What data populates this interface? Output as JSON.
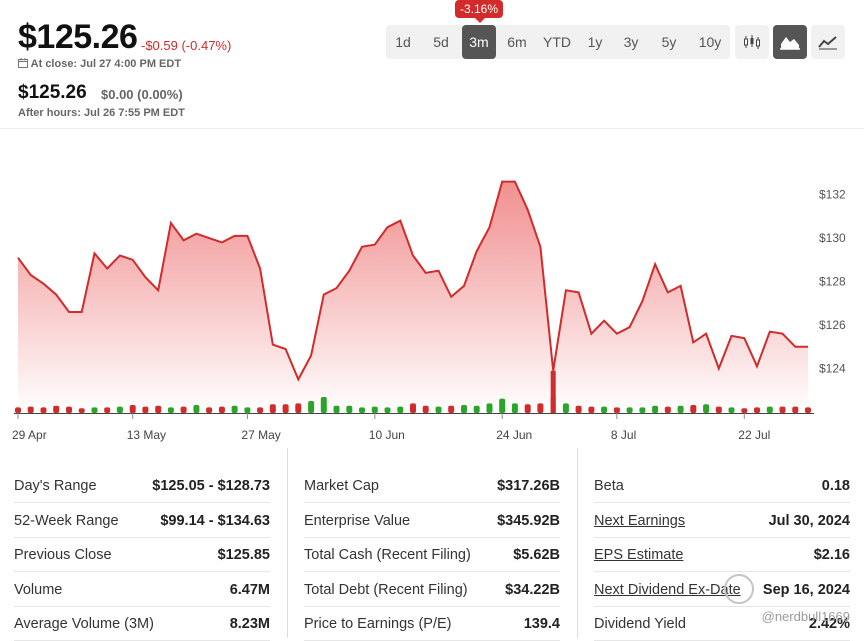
{
  "quote": {
    "price": "$125.26",
    "change": "-$0.59 (-0.47%)",
    "close_label": "At close: Jul 27 4:00 PM EDT",
    "after_price": "$125.26",
    "after_change": "$0.00 (0.00%)",
    "after_label": "After hours: Jul 26 7:55 PM EDT"
  },
  "ranges": {
    "items": [
      "1d",
      "5d",
      "3m",
      "6m",
      "YTD",
      "1y",
      "3y",
      "5y",
      "10y"
    ],
    "selected": "3m",
    "tooltip": "-3.16%"
  },
  "chart_types": {
    "items": [
      "candlestick-icon",
      "mountain-chart-icon",
      "line-chart-icon"
    ],
    "selected": "mountain-chart-icon"
  },
  "colors": {
    "accent_negative": "#d12b2b",
    "accent_positive": "#2aa52a",
    "area_top": "#f08a8a",
    "area_bottom": "#ffffff",
    "button_active": "#555555"
  },
  "chart_data": {
    "type": "area",
    "title": "",
    "xlabel": "",
    "ylabel": "",
    "x_ticks": [
      "29 Apr",
      "13 May",
      "27 May",
      "10 Jun",
      "24 Jun",
      "8 Jul",
      "22 Jul"
    ],
    "y_ticks": [
      "$124",
      "$126",
      "$128",
      "$130",
      "$132"
    ],
    "ylim": [
      122.0,
      133.5
    ],
    "series": [
      {
        "values": [
          129.1,
          128.3,
          127.9,
          127.4,
          126.6,
          126.6,
          129.3,
          128.6,
          129.2,
          129.0,
          128.2,
          127.6,
          130.7,
          129.9,
          130.2,
          130.0,
          129.8,
          130.1,
          130.1,
          128.6,
          125.1,
          124.9,
          123.5,
          124.6,
          127.4,
          127.7,
          128.5,
          129.6,
          129.7,
          130.5,
          130.8,
          129.2,
          128.4,
          128.5,
          127.3,
          127.8,
          129.4,
          130.5,
          132.6,
          132.6,
          131.3,
          129.6,
          123.9,
          127.6,
          127.5,
          125.6,
          126.2,
          125.6,
          125.9,
          127.1,
          128.8,
          127.5,
          127.8,
          125.2,
          125.6,
          124.0,
          125.5,
          125.4,
          124.1,
          125.7,
          125.6,
          125.0,
          125.0
        ]
      }
    ],
    "volume_direction": [
      "down",
      "down",
      "down",
      "down",
      "down",
      "down",
      "up",
      "down",
      "up",
      "down",
      "down",
      "down",
      "up",
      "down",
      "up",
      "down",
      "down",
      "up",
      "up",
      "down",
      "down",
      "down",
      "down",
      "up",
      "up",
      "up",
      "up",
      "up",
      "up",
      "up",
      "up",
      "down",
      "down",
      "up",
      "down",
      "up",
      "up",
      "up",
      "up",
      "up",
      "down",
      "down",
      "down",
      "up",
      "down",
      "down",
      "up",
      "down",
      "up",
      "up",
      "up",
      "down",
      "up",
      "down",
      "up",
      "down",
      "up",
      "down",
      "down",
      "up",
      "down",
      "down",
      "down"
    ],
    "volume_level": [
      0.35,
      0.4,
      0.35,
      0.45,
      0.4,
      0.3,
      0.35,
      0.35,
      0.4,
      0.5,
      0.4,
      0.45,
      0.35,
      0.4,
      0.5,
      0.35,
      0.4,
      0.45,
      0.35,
      0.35,
      0.55,
      0.55,
      0.6,
      0.75,
      1.0,
      0.45,
      0.45,
      0.35,
      0.4,
      0.35,
      0.4,
      0.6,
      0.45,
      0.4,
      0.45,
      0.5,
      0.45,
      0.6,
      0.9,
      0.6,
      0.55,
      0.6,
      1.0,
      0.6,
      0.45,
      0.4,
      0.4,
      0.35,
      0.35,
      0.35,
      0.45,
      0.4,
      0.45,
      0.5,
      0.55,
      0.4,
      0.35,
      0.3,
      0.35,
      0.4,
      0.4,
      0.4,
      0.35
    ],
    "grid": false
  },
  "stats": {
    "col1": [
      {
        "label": "Day's Range",
        "value": "$125.05 - $128.73"
      },
      {
        "label": "52-Week Range",
        "value": "$99.14 - $134.63"
      },
      {
        "label": "Previous Close",
        "value": "$125.85"
      },
      {
        "label": "Volume",
        "value": "6.47M"
      },
      {
        "label": "Average Volume (3M)",
        "value": "8.23M"
      }
    ],
    "col2": [
      {
        "label": "Market Cap",
        "value": "$317.26B"
      },
      {
        "label": "Enterprise Value",
        "value": "$345.92B"
      },
      {
        "label": "Total Cash (Recent Filing)",
        "value": "$5.62B"
      },
      {
        "label": "Total Debt (Recent Filing)",
        "value": "$34.22B"
      },
      {
        "label": "Price to Earnings (P/E)",
        "value": "139.4"
      }
    ],
    "col3": [
      {
        "label": "Beta",
        "value": "0.18"
      },
      {
        "label": "Next Earnings",
        "value": "Jul 30, 2024"
      },
      {
        "label": "EPS Estimate",
        "value": "$2.16"
      },
      {
        "label": "Next Dividend Ex-Date",
        "value": "Sep 16, 2024"
      },
      {
        "label": "Dividend Yield",
        "value": "2.42%"
      }
    ]
  },
  "watermark": "@nerdbull1669"
}
